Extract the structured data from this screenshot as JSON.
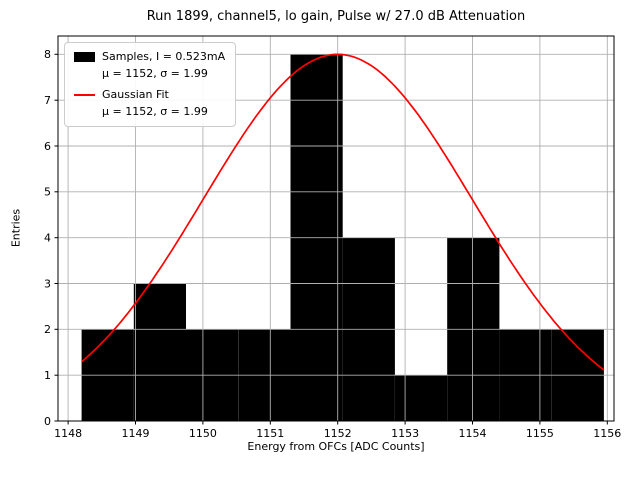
{
  "chart_data": {
    "type": "bar",
    "subtype": "histogram-with-gaussian-fit",
    "title": "Run 1899, channel5, lo gain, Pulse w/ 27.0 dB Attenuation",
    "xlabel": "Energy from OFCs [ADC Counts]",
    "ylabel": "Entries",
    "xlim": [
      1147.85,
      1156.1
    ],
    "ylim": [
      0,
      8.4
    ],
    "x_ticks": [
      1148,
      1149,
      1150,
      1151,
      1152,
      1153,
      1154,
      1155,
      1156
    ],
    "y_ticks": [
      0,
      1,
      2,
      3,
      4,
      5,
      6,
      7,
      8
    ],
    "grid": true,
    "grid_color": "#b0b0b0",
    "bar_color": "#000000",
    "fit_color": "#ff0000",
    "histogram": {
      "bin_edges": [
        1148.2,
        1148.975,
        1149.75,
        1150.525,
        1151.3,
        1152.075,
        1152.85,
        1153.625,
        1154.4,
        1155.175,
        1155.95
      ],
      "counts": [
        2,
        3,
        2,
        2,
        8,
        4,
        1,
        4,
        2,
        2
      ]
    },
    "gaussian_fit": {
      "mu": 1152,
      "sigma": 1.99,
      "amplitude": 8.0,
      "x_range": [
        1148.2,
        1155.95
      ]
    },
    "legend": {
      "entries": [
        {
          "swatch": "black-rect",
          "label": "Samples, I = 0.523mA",
          "sublabel": "μ = 1152, σ = 1.99"
        },
        {
          "swatch": "red-line",
          "label": "Gaussian Fit",
          "sublabel": "μ = 1152, σ = 1.99"
        }
      ]
    }
  }
}
